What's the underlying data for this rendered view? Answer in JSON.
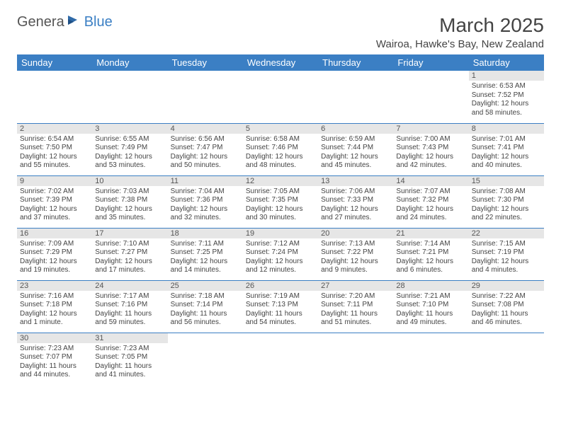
{
  "logo": {
    "part1": "Genera",
    "part2": "Blue"
  },
  "title": "March 2025",
  "location": "Wairoa, Hawke's Bay, New Zealand",
  "header_bg": "#3b7fc4",
  "days_of_week": [
    "Sunday",
    "Monday",
    "Tuesday",
    "Wednesday",
    "Thursday",
    "Friday",
    "Saturday"
  ],
  "weeks": [
    [
      null,
      null,
      null,
      null,
      null,
      null,
      {
        "d": "1",
        "sr": "6:53 AM",
        "ss": "7:52 PM",
        "dl": "12 hours and 58 minutes."
      }
    ],
    [
      {
        "d": "2",
        "sr": "6:54 AM",
        "ss": "7:50 PM",
        "dl": "12 hours and 55 minutes."
      },
      {
        "d": "3",
        "sr": "6:55 AM",
        "ss": "7:49 PM",
        "dl": "12 hours and 53 minutes."
      },
      {
        "d": "4",
        "sr": "6:56 AM",
        "ss": "7:47 PM",
        "dl": "12 hours and 50 minutes."
      },
      {
        "d": "5",
        "sr": "6:58 AM",
        "ss": "7:46 PM",
        "dl": "12 hours and 48 minutes."
      },
      {
        "d": "6",
        "sr": "6:59 AM",
        "ss": "7:44 PM",
        "dl": "12 hours and 45 minutes."
      },
      {
        "d": "7",
        "sr": "7:00 AM",
        "ss": "7:43 PM",
        "dl": "12 hours and 42 minutes."
      },
      {
        "d": "8",
        "sr": "7:01 AM",
        "ss": "7:41 PM",
        "dl": "12 hours and 40 minutes."
      }
    ],
    [
      {
        "d": "9",
        "sr": "7:02 AM",
        "ss": "7:39 PM",
        "dl": "12 hours and 37 minutes."
      },
      {
        "d": "10",
        "sr": "7:03 AM",
        "ss": "7:38 PM",
        "dl": "12 hours and 35 minutes."
      },
      {
        "d": "11",
        "sr": "7:04 AM",
        "ss": "7:36 PM",
        "dl": "12 hours and 32 minutes."
      },
      {
        "d": "12",
        "sr": "7:05 AM",
        "ss": "7:35 PM",
        "dl": "12 hours and 30 minutes."
      },
      {
        "d": "13",
        "sr": "7:06 AM",
        "ss": "7:33 PM",
        "dl": "12 hours and 27 minutes."
      },
      {
        "d": "14",
        "sr": "7:07 AM",
        "ss": "7:32 PM",
        "dl": "12 hours and 24 minutes."
      },
      {
        "d": "15",
        "sr": "7:08 AM",
        "ss": "7:30 PM",
        "dl": "12 hours and 22 minutes."
      }
    ],
    [
      {
        "d": "16",
        "sr": "7:09 AM",
        "ss": "7:29 PM",
        "dl": "12 hours and 19 minutes."
      },
      {
        "d": "17",
        "sr": "7:10 AM",
        "ss": "7:27 PM",
        "dl": "12 hours and 17 minutes."
      },
      {
        "d": "18",
        "sr": "7:11 AM",
        "ss": "7:25 PM",
        "dl": "12 hours and 14 minutes."
      },
      {
        "d": "19",
        "sr": "7:12 AM",
        "ss": "7:24 PM",
        "dl": "12 hours and 12 minutes."
      },
      {
        "d": "20",
        "sr": "7:13 AM",
        "ss": "7:22 PM",
        "dl": "12 hours and 9 minutes."
      },
      {
        "d": "21",
        "sr": "7:14 AM",
        "ss": "7:21 PM",
        "dl": "12 hours and 6 minutes."
      },
      {
        "d": "22",
        "sr": "7:15 AM",
        "ss": "7:19 PM",
        "dl": "12 hours and 4 minutes."
      }
    ],
    [
      {
        "d": "23",
        "sr": "7:16 AM",
        "ss": "7:18 PM",
        "dl": "12 hours and 1 minute."
      },
      {
        "d": "24",
        "sr": "7:17 AM",
        "ss": "7:16 PM",
        "dl": "11 hours and 59 minutes."
      },
      {
        "d": "25",
        "sr": "7:18 AM",
        "ss": "7:14 PM",
        "dl": "11 hours and 56 minutes."
      },
      {
        "d": "26",
        "sr": "7:19 AM",
        "ss": "7:13 PM",
        "dl": "11 hours and 54 minutes."
      },
      {
        "d": "27",
        "sr": "7:20 AM",
        "ss": "7:11 PM",
        "dl": "11 hours and 51 minutes."
      },
      {
        "d": "28",
        "sr": "7:21 AM",
        "ss": "7:10 PM",
        "dl": "11 hours and 49 minutes."
      },
      {
        "d": "29",
        "sr": "7:22 AM",
        "ss": "7:08 PM",
        "dl": "11 hours and 46 minutes."
      }
    ],
    [
      {
        "d": "30",
        "sr": "7:23 AM",
        "ss": "7:07 PM",
        "dl": "11 hours and 44 minutes."
      },
      {
        "d": "31",
        "sr": "7:23 AM",
        "ss": "7:05 PM",
        "dl": "11 hours and 41 minutes."
      },
      null,
      null,
      null,
      null,
      null
    ]
  ],
  "labels": {
    "sunrise": "Sunrise: ",
    "sunset": "Sunset: ",
    "daylight": "Daylight: "
  }
}
